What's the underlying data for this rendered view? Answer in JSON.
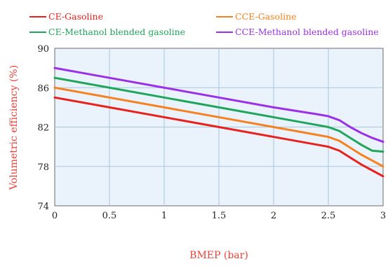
{
  "chart_data": {
    "type": "line",
    "title": "",
    "xlabel": "BMEP (bar)",
    "ylabel": "Volumetric efficiency (%)",
    "xlim": [
      0,
      3
    ],
    "ylim": [
      74,
      90
    ],
    "x_ticks": [
      0,
      0.5,
      1,
      1.5,
      2,
      2.5,
      3
    ],
    "x_tick_labels": [
      "0",
      "0.5",
      "1",
      "1.5",
      "2",
      "2.5",
      "3"
    ],
    "y_ticks": [
      74,
      78,
      82,
      86,
      90
    ],
    "y_tick_labels": [
      "74",
      "78",
      "82",
      "86",
      "90"
    ],
    "grid": true,
    "legend_position": "top",
    "plot_background": "#eaf3fb",
    "grid_color": "#a8c6de",
    "axis_label_color": "#e8413a",
    "series": [
      {
        "name": "CE-Gasoline",
        "color": "#e8211c",
        "x": [
          0,
          0.5,
          1,
          1.5,
          2,
          2.4,
          2.5,
          2.6,
          2.7,
          2.8,
          2.9,
          3
        ],
        "y": [
          85,
          84,
          83,
          82,
          81,
          80.2,
          80,
          79.6,
          78.9,
          78.2,
          77.6,
          77
        ]
      },
      {
        "name": "CCE-Gasoline",
        "color": "#f58220",
        "x": [
          0,
          0.5,
          1,
          1.5,
          2,
          2.4,
          2.5,
          2.6,
          2.7,
          2.8,
          2.9,
          3
        ],
        "y": [
          86,
          85,
          84,
          83,
          82,
          81.2,
          81,
          80.6,
          79.9,
          79.2,
          78.6,
          78
        ]
      },
      {
        "name": "CE-Methanol blended gasoline",
        "color": "#1fa65a",
        "x": [
          0,
          0.5,
          1,
          1.5,
          2,
          2.4,
          2.5,
          2.6,
          2.7,
          2.8,
          2.9,
          3
        ],
        "y": [
          87,
          86,
          85,
          84,
          83,
          82.2,
          82,
          81.6,
          80.9,
          80.2,
          79.6,
          79.5
        ]
      },
      {
        "name": "CCE-Methanol blended gasoline",
        "color": "#9b30e8",
        "x": [
          0,
          0.5,
          1,
          1.5,
          2,
          2.4,
          2.5,
          2.6,
          2.7,
          2.8,
          2.9,
          3
        ],
        "y": [
          88,
          87,
          86,
          85,
          84,
          83.3,
          83.1,
          82.7,
          82,
          81.4,
          80.9,
          80.5
        ]
      }
    ]
  }
}
